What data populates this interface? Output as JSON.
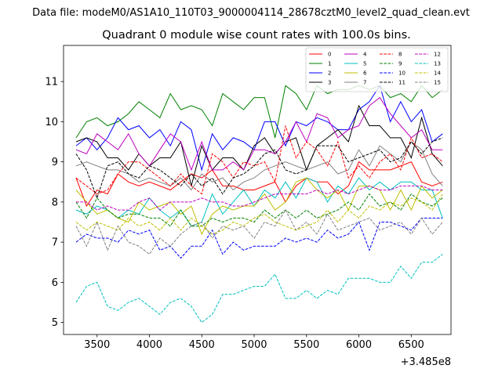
{
  "chart_data": {
    "type": "line",
    "suptitle": "Data file: modeM0/AS1A10_110T03_9000004114_28678cztM0_level2_quad_clean.evt",
    "title": "Quadrant 0 module wise count rates with 100.0s bins.",
    "xlabel": "",
    "ylabel": "",
    "x_offset_label": "+3.485e8",
    "xlim": [
      3180,
      6880
    ],
    "ylim": [
      4.7,
      11.9
    ],
    "xticks": [
      3500,
      4000,
      4500,
      5000,
      5500,
      6000,
      6500
    ],
    "yticks": [
      5,
      6,
      7,
      8,
      9,
      10,
      11
    ],
    "legend_position": "top-right",
    "x": [
      3300,
      3400,
      3500,
      3600,
      3700,
      3800,
      3900,
      4000,
      4100,
      4200,
      4300,
      4400,
      4500,
      4600,
      4700,
      4800,
      4900,
      5000,
      5100,
      5200,
      5300,
      5400,
      5500,
      5600,
      5700,
      5800,
      5900,
      6000,
      6100,
      6200,
      6300,
      6400,
      6500,
      6600,
      6700,
      6800
    ],
    "series": [
      {
        "name": "0",
        "color": "#ff0000",
        "dash": "solid",
        "values": [
          8.6,
          7.9,
          8.3,
          8.2,
          8.7,
          8.5,
          8.4,
          8.5,
          8.4,
          8.3,
          8.5,
          8.7,
          8.6,
          8.8,
          8.4,
          8.4,
          8.3,
          8.3,
          8.4,
          8.5,
          8.0,
          8.4,
          8.6,
          8.5,
          8.5,
          8.2,
          8.4,
          9.0,
          8.8,
          8.8,
          8.8,
          8.9,
          9.0,
          8.5,
          8.4,
          8.5
        ]
      },
      {
        "name": "1",
        "color": "#008000",
        "dash": "solid",
        "values": [
          9.6,
          10.0,
          10.1,
          9.9,
          10.0,
          10.2,
          10.5,
          10.3,
          10.1,
          10.7,
          10.3,
          10.4,
          10.3,
          9.9,
          10.7,
          10.5,
          10.3,
          10.6,
          10.6,
          9.6,
          10.9,
          10.7,
          10.3,
          10.9,
          10.7,
          10.8,
          10.8,
          10.9,
          10.8,
          10.9,
          10.6,
          10.7,
          10.5,
          10.9,
          10.6,
          10.8
        ]
      },
      {
        "name": "2",
        "color": "#0000ff",
        "dash": "solid",
        "values": [
          9.4,
          9.6,
          9.3,
          9.6,
          10.1,
          9.8,
          9.9,
          9.6,
          9.8,
          9.4,
          10.0,
          9.8,
          8.8,
          9.7,
          9.3,
          9.6,
          9.5,
          9.3,
          10.0,
          10.0,
          9.4,
          10.0,
          9.9,
          10.1,
          10.0,
          9.8,
          9.8,
          10.3,
          10.5,
          10.9,
          10.0,
          10.5,
          10.0,
          10.3,
          9.5,
          9.7
        ]
      },
      {
        "name": "3",
        "color": "#000000",
        "dash": "solid",
        "values": [
          9.5,
          9.6,
          9.5,
          9.1,
          9.1,
          8.8,
          9.2,
          8.9,
          9.1,
          9.1,
          9.5,
          8.4,
          9.4,
          8.8,
          9.1,
          9.1,
          8.8,
          9.4,
          9.6,
          9.2,
          9.5,
          9.6,
          8.8,
          9.4,
          9.6,
          9.8,
          9.5,
          10.4,
          9.9,
          9.9,
          9.6,
          9.6,
          9.1,
          10.1,
          9.2,
          8.9
        ]
      },
      {
        "name": "4",
        "color": "#bf00bf",
        "dash": "solid",
        "values": [
          9.3,
          9.2,
          9.7,
          9.5,
          9.3,
          9.7,
          9.2,
          8.9,
          9.3,
          9.7,
          9.5,
          8.8,
          9.5,
          8.8,
          8.8,
          9.0,
          8.8,
          9.3,
          9.3,
          9.2,
          9.5,
          10.0,
          9.5,
          10.2,
          10.1,
          9.6,
          9.8,
          9.9,
          10.4,
          10.6,
          10.2,
          9.9,
          9.6,
          9.8,
          9.3,
          9.3
        ]
      },
      {
        "name": "5",
        "color": "#00bfbf",
        "dash": "solid",
        "values": [
          7.8,
          7.7,
          7.9,
          7.8,
          7.6,
          7.8,
          7.7,
          8.1,
          7.8,
          7.6,
          7.8,
          7.4,
          7.5,
          8.2,
          7.7,
          8.0,
          8.3,
          7.9,
          8.3,
          8.1,
          8.5,
          8.1,
          8.6,
          8.5,
          8.0,
          8.4,
          8.2,
          8.6,
          8.3,
          8.5,
          8.3,
          8.5,
          8.5,
          8.3,
          8.3,
          7.6
        ]
      },
      {
        "name": "6",
        "color": "#bfbf00",
        "dash": "solid",
        "values": [
          8.3,
          8.0,
          7.7,
          7.8,
          7.6,
          7.5,
          8.0,
          7.8,
          7.9,
          8.0,
          7.7,
          7.9,
          7.2,
          7.7,
          7.9,
          7.8,
          7.9,
          7.9,
          8.2,
          7.8,
          8.0,
          8.5,
          8.6,
          8.3,
          8.1,
          8.3,
          7.8,
          8.4,
          8.4,
          8.3,
          7.8,
          8.3,
          7.8,
          8.4,
          8.1,
          8.3
        ]
      },
      {
        "name": "7",
        "color": "#808080",
        "dash": "solid",
        "values": [
          8.9,
          9.0,
          8.9,
          8.8,
          8.8,
          8.7,
          8.5,
          8.6,
          8.5,
          8.4,
          8.6,
          8.3,
          8.7,
          8.5,
          8.6,
          8.3,
          8.5,
          8.6,
          8.8,
          8.9,
          9.0,
          8.9,
          8.8,
          8.9,
          9.0,
          8.7,
          8.8,
          9.3,
          8.9,
          9.4,
          9.2,
          9.0,
          9.5,
          9.3,
          8.7,
          8.4
        ]
      },
      {
        "name": "8",
        "color": "#ff0000",
        "dash": "dashed",
        "values": [
          8.6,
          8.4,
          8.2,
          8.3,
          8.7,
          9.0,
          9.0,
          8.8,
          8.6,
          8.4,
          8.7,
          8.4,
          8.2,
          9.2,
          9.0,
          8.6,
          9.0,
          8.9,
          9.0,
          8.5,
          9.9,
          9.1,
          9.5,
          9.3,
          8.9,
          9.5,
          8.6,
          8.9,
          8.6,
          9.0,
          9.2,
          8.8,
          9.6,
          9.1,
          9.2,
          9.0
        ]
      },
      {
        "name": "9",
        "color": "#008000",
        "dash": "dashed",
        "values": [
          8.0,
          7.6,
          8.1,
          7.8,
          7.6,
          7.7,
          7.7,
          7.6,
          7.6,
          7.4,
          7.8,
          7.4,
          7.4,
          7.6,
          7.5,
          7.6,
          7.6,
          7.5,
          7.8,
          7.6,
          7.8,
          7.6,
          7.8,
          7.6,
          7.7,
          7.8,
          8.0,
          7.8,
          8.2,
          7.9,
          8.0,
          7.8,
          8.2,
          8.0,
          7.9,
          8.1
        ]
      },
      {
        "name": "10",
        "color": "#0000ff",
        "dash": "dashed",
        "values": [
          7.0,
          7.2,
          7.1,
          7.1,
          7.0,
          7.3,
          7.2,
          7.3,
          6.8,
          6.9,
          6.6,
          6.9,
          6.9,
          7.3,
          6.7,
          7.0,
          6.8,
          6.9,
          6.9,
          6.9,
          7.1,
          7.0,
          7.1,
          7.0,
          7.3,
          7.1,
          7.2,
          7.5,
          6.8,
          7.5,
          7.5,
          7.4,
          7.3,
          7.6,
          7.6,
          7.6
        ]
      },
      {
        "name": "11",
        "color": "#000000",
        "dash": "dashed",
        "values": [
          9.2,
          8.8,
          8.1,
          8.9,
          9.0,
          8.7,
          8.6,
          8.9,
          8.8,
          8.6,
          8.4,
          8.7,
          8.4,
          8.6,
          8.2,
          8.6,
          8.7,
          8.9,
          9.2,
          9.3,
          8.8,
          8.7,
          8.8,
          9.4,
          9.4,
          9.4,
          9.0,
          9.1,
          9.2,
          9.3,
          9.0,
          9.1,
          9.5,
          9.2,
          9.5,
          9.6
        ]
      },
      {
        "name": "12",
        "color": "#bf00bf",
        "dash": "dashed",
        "values": [
          8.0,
          8.0,
          7.8,
          7.9,
          7.8,
          7.8,
          8.0,
          8.1,
          7.8,
          8.0,
          8.0,
          8.0,
          8.1,
          8.0,
          8.0,
          7.9,
          7.9,
          8.0,
          8.1,
          8.2,
          8.2,
          8.2,
          8.2,
          8.3,
          8.2,
          8.3,
          8.2,
          8.3,
          8.4,
          8.3,
          8.3,
          8.4,
          8.4,
          8.4,
          8.3,
          8.3
        ]
      },
      {
        "name": "13",
        "color": "#00bfbf",
        "dash": "dashed",
        "values": [
          5.5,
          5.9,
          6.0,
          5.4,
          5.3,
          5.5,
          5.6,
          5.4,
          5.2,
          5.5,
          5.6,
          5.4,
          5.0,
          5.2,
          5.7,
          5.7,
          5.8,
          5.9,
          5.9,
          6.2,
          5.6,
          5.6,
          5.8,
          5.6,
          5.8,
          5.7,
          6.1,
          6.1,
          6.1,
          6.0,
          6.0,
          6.4,
          6.1,
          6.5,
          6.5,
          6.7
        ]
      },
      {
        "name": "14",
        "color": "#bfbf00",
        "dash": "dashed",
        "values": [
          7.5,
          7.3,
          7.5,
          7.4,
          7.3,
          7.6,
          7.4,
          7.5,
          7.3,
          7.6,
          7.3,
          7.6,
          7.4,
          7.2,
          7.3,
          7.5,
          7.4,
          7.6,
          7.7,
          7.5,
          7.4,
          7.3,
          7.4,
          7.5,
          7.8,
          7.5,
          7.8,
          7.6,
          7.9,
          7.8,
          8.0,
          7.9,
          8.1,
          8.0,
          7.8,
          8.2
        ]
      },
      {
        "name": "15",
        "color": "#808080",
        "dash": "dashed",
        "values": [
          7.4,
          6.9,
          7.5,
          6.8,
          7.4,
          7.0,
          6.9,
          6.7,
          7.1,
          6.9,
          7.2,
          7.4,
          7.5,
          7.1,
          7.4,
          7.3,
          7.4,
          7.1,
          7.5,
          7.4,
          7.8,
          7.3,
          7.5,
          7.2,
          7.7,
          7.3,
          7.4,
          7.5,
          7.6,
          7.3,
          7.4,
          7.5,
          7.2,
          7.6,
          7.2,
          7.5
        ]
      }
    ]
  }
}
